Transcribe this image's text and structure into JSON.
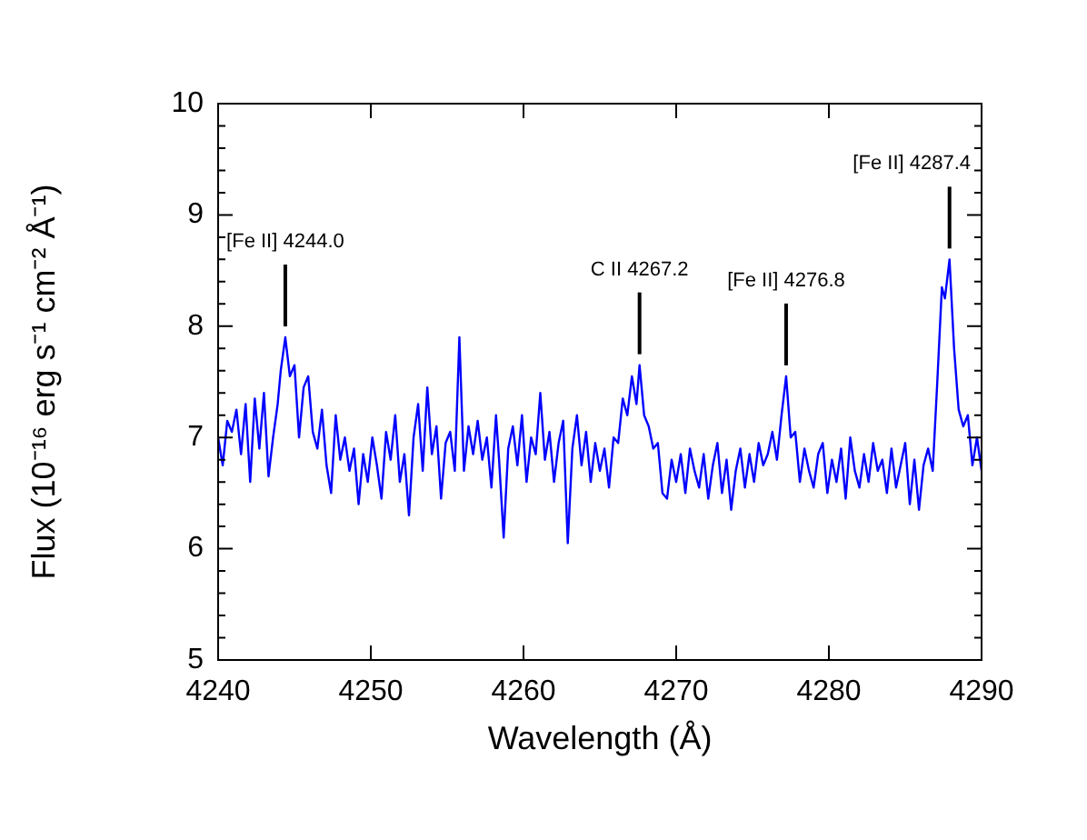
{
  "chart_data": {
    "type": "line",
    "xlabel": "Wavelength (Å)",
    "ylabel": "Flux (10⁻¹⁶ erg s⁻¹ cm⁻² Å⁻¹)",
    "xlim": [
      4240,
      4290
    ],
    "xticks": [
      4240,
      4250,
      4260,
      4270,
      4280,
      4290
    ],
    "ylim": [
      5,
      10
    ],
    "yticks": [
      5,
      {
        "value": 5.2,
        "label": null
      },
      {
        "value": 5.4,
        "label": null
      },
      {
        "value": 5.6,
        "label": null
      },
      {
        "value": 5.8,
        "label": null
      },
      6,
      {
        "value": 6.2,
        "label": null
      },
      {
        "value": 6.4,
        "label": null
      },
      {
        "value": 6.6,
        "label": null
      },
      {
        "value": 6.8,
        "label": null
      },
      7,
      {
        "value": 7.2,
        "label": null
      },
      {
        "value": 7.4,
        "label": null
      },
      {
        "value": 7.6,
        "label": null
      },
      {
        "value": 7.8,
        "label": null
      },
      8,
      {
        "value": 8.2,
        "label": null
      },
      {
        "value": 8.4,
        "label": null
      },
      {
        "value": 8.6,
        "label": null
      },
      {
        "value": 8.8,
        "label": null
      },
      9,
      {
        "value": 9.2,
        "label": null
      },
      {
        "value": 9.4,
        "label": null
      },
      {
        "value": 9.6,
        "label": null
      },
      {
        "value": 9.8,
        "label": null
      },
      10
    ],
    "marker": "none",
    "legend": false,
    "annotations": [
      {
        "text": "[Fe II] 4244.0",
        "x": 4244.4,
        "y": 7.9
      },
      {
        "text": "C II 4267.2",
        "x": 4267.6,
        "y": 7.65
      },
      {
        "text": "[Fe II] 4276.8",
        "x": 4277.2,
        "y": 7.55
      },
      {
        "text": "[Fe II] 4287.4",
        "x": 4287.9,
        "y": 8.6
      }
    ],
    "series": [
      {
        "color": "#0000ff",
        "x": [
          4240.0,
          4240.3,
          4240.6,
          4240.9,
          4241.2,
          4241.5,
          4241.8,
          4242.1,
          4242.4,
          4242.7,
          4243.0,
          4243.3,
          4243.6,
          4243.9,
          4244.1,
          4244.4,
          4244.7,
          4245.0,
          4245.3,
          4245.6,
          4245.9,
          4246.2,
          4246.5,
          4246.8,
          4247.1,
          4247.4,
          4247.7,
          4248.0,
          4248.3,
          4248.6,
          4248.9,
          4249.2,
          4249.5,
          4249.8,
          4250.1,
          4250.4,
          4250.7,
          4251.0,
          4251.3,
          4251.6,
          4251.9,
          4252.2,
          4252.5,
          4252.8,
          4253.1,
          4253.4,
          4253.7,
          4254.0,
          4254.3,
          4254.6,
          4254.9,
          4255.2,
          4255.5,
          4255.8,
          4256.1,
          4256.4,
          4256.7,
          4257.0,
          4257.3,
          4257.6,
          4257.9,
          4258.2,
          4258.4,
          4258.7,
          4259.0,
          4259.3,
          4259.6,
          4259.9,
          4260.2,
          4260.5,
          4260.8,
          4261.1,
          4261.4,
          4261.7,
          4262.0,
          4262.3,
          4262.6,
          4262.9,
          4263.2,
          4263.5,
          4263.8,
          4264.1,
          4264.4,
          4264.7,
          4265.0,
          4265.3,
          4265.6,
          4265.9,
          4266.2,
          4266.5,
          4266.8,
          4267.1,
          4267.4,
          4267.6,
          4267.9,
          4268.2,
          4268.5,
          4268.8,
          4269.1,
          4269.4,
          4269.7,
          4270.0,
          4270.3,
          4270.6,
          4270.9,
          4271.2,
          4271.5,
          4271.8,
          4272.1,
          4272.4,
          4272.7,
          4273.0,
          4273.3,
          4273.6,
          4273.9,
          4274.2,
          4274.5,
          4274.8,
          4275.1,
          4275.4,
          4275.7,
          4276.0,
          4276.3,
          4276.6,
          4276.9,
          4277.2,
          4277.5,
          4277.8,
          4278.1,
          4278.4,
          4278.7,
          4279.0,
          4279.3,
          4279.6,
          4279.9,
          4280.2,
          4280.5,
          4280.8,
          4281.1,
          4281.4,
          4281.7,
          4282.0,
          4282.3,
          4282.6,
          4282.9,
          4283.2,
          4283.5,
          4283.8,
          4284.1,
          4284.4,
          4284.7,
          4285.0,
          4285.3,
          4285.6,
          4285.9,
          4286.2,
          4286.5,
          4286.8,
          4287.1,
          4287.4,
          4287.6,
          4287.9,
          4288.2,
          4288.5,
          4288.8,
          4289.1,
          4289.4,
          4289.7,
          4290.0
        ],
        "values": [
          7.0,
          6.75,
          7.15,
          7.05,
          7.25,
          6.85,
          7.3,
          6.6,
          7.35,
          6.9,
          7.4,
          6.65,
          7.0,
          7.3,
          7.6,
          7.9,
          7.55,
          7.65,
          7.0,
          7.45,
          7.55,
          7.05,
          6.9,
          7.25,
          6.75,
          6.5,
          7.2,
          6.8,
          7.0,
          6.7,
          6.9,
          6.4,
          6.85,
          6.6,
          7.0,
          6.75,
          6.45,
          7.05,
          6.8,
          7.2,
          6.6,
          6.85,
          6.3,
          7.0,
          7.3,
          6.7,
          7.45,
          6.85,
          7.1,
          6.45,
          6.95,
          7.05,
          6.7,
          7.9,
          6.7,
          7.1,
          6.85,
          7.15,
          6.8,
          7.0,
          6.55,
          7.2,
          6.8,
          6.1,
          6.9,
          7.1,
          6.75,
          7.2,
          6.6,
          7.0,
          6.85,
          7.4,
          6.8,
          7.05,
          6.6,
          6.95,
          7.15,
          6.05,
          6.9,
          7.2,
          6.75,
          7.05,
          6.6,
          6.95,
          6.7,
          6.9,
          6.55,
          7.0,
          6.95,
          7.35,
          7.2,
          7.55,
          7.3,
          7.65,
          7.2,
          7.1,
          6.9,
          6.95,
          6.5,
          6.45,
          6.8,
          6.6,
          6.85,
          6.5,
          6.9,
          6.7,
          6.55,
          6.85,
          6.45,
          6.75,
          6.95,
          6.5,
          6.8,
          6.35,
          6.7,
          6.9,
          6.55,
          6.85,
          6.6,
          6.95,
          6.75,
          6.85,
          7.05,
          6.8,
          7.2,
          7.55,
          7.0,
          7.05,
          6.6,
          6.9,
          6.7,
          6.55,
          6.85,
          6.95,
          6.5,
          6.8,
          6.6,
          6.9,
          6.45,
          7.0,
          6.7,
          6.55,
          6.85,
          6.6,
          6.95,
          6.7,
          6.8,
          6.5,
          6.9,
          6.55,
          6.75,
          6.95,
          6.4,
          6.8,
          6.35,
          6.75,
          6.9,
          6.7,
          7.5,
          8.35,
          8.25,
          8.6,
          7.8,
          7.25,
          7.1,
          7.2,
          6.75,
          7.0,
          6.7
        ]
      }
    ]
  }
}
